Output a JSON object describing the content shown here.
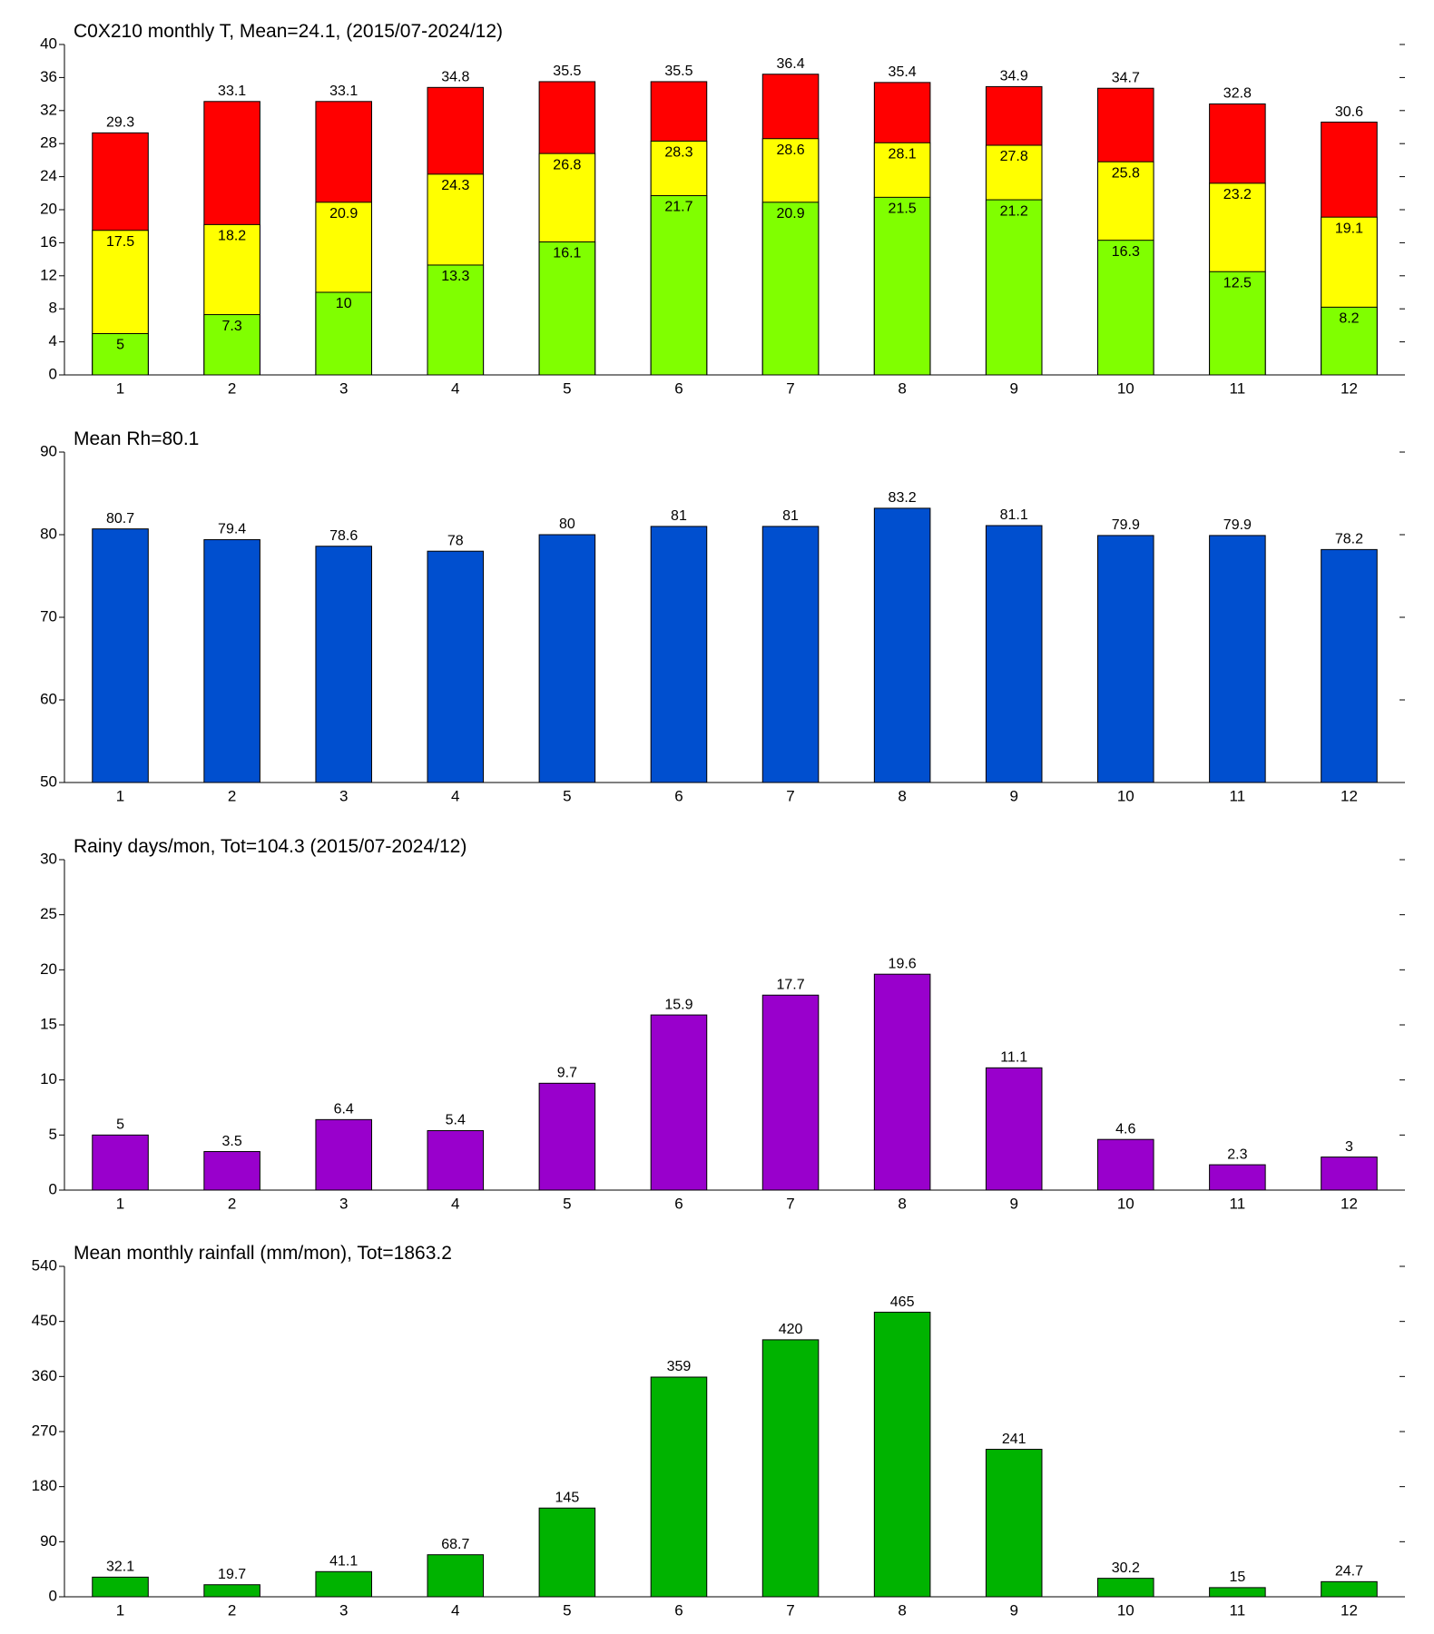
{
  "chart_data": [
    {
      "type": "bar",
      "title": "C0X210 monthly T, Mean=24.1, (2015/07-2024/12)",
      "categories": [
        "1",
        "2",
        "3",
        "4",
        "5",
        "6",
        "7",
        "8",
        "9",
        "10",
        "11",
        "12"
      ],
      "series": [
        {
          "color": "#ff0000",
          "label_position": "above",
          "values": [
            29.3,
            33.1,
            33.1,
            34.8,
            35.5,
            35.5,
            36.4,
            35.4,
            34.9,
            34.7,
            32.8,
            30.6
          ]
        },
        {
          "color": "#ffff00",
          "label_position": "inside",
          "values": [
            17.5,
            18.2,
            20.9,
            24.3,
            26.8,
            28.3,
            28.6,
            28.1,
            27.8,
            25.8,
            23.2,
            19.1
          ]
        },
        {
          "color": "#80ff00",
          "label_position": "inside",
          "values": [
            5,
            7.3,
            10,
            13.3,
            16.1,
            21.7,
            20.9,
            21.5,
            21.2,
            16.3,
            12.5,
            8.2
          ]
        }
      ],
      "ylim": [
        0,
        40
      ],
      "yticks": [
        0,
        4,
        8,
        12,
        16,
        20,
        24,
        28,
        32,
        36,
        40
      ]
    },
    {
      "type": "bar",
      "title": "Mean Rh=80.1",
      "categories": [
        "1",
        "2",
        "3",
        "4",
        "5",
        "6",
        "7",
        "8",
        "9",
        "10",
        "11",
        "12"
      ],
      "series": [
        {
          "color": "#004fcf",
          "label_position": "above",
          "values": [
            80.7,
            79.4,
            78.6,
            78,
            80,
            81,
            81,
            83.2,
            81.1,
            79.9,
            79.9,
            78.2
          ]
        }
      ],
      "ylim": [
        50,
        90
      ],
      "yticks": [
        50,
        60,
        70,
        80,
        90
      ]
    },
    {
      "type": "bar",
      "title": "Rainy days/mon, Tot=104.3 (2015/07-2024/12)",
      "categories": [
        "1",
        "2",
        "3",
        "4",
        "5",
        "6",
        "7",
        "8",
        "9",
        "10",
        "11",
        "12"
      ],
      "series": [
        {
          "color": "#9900cc",
          "label_position": "above",
          "values": [
            5,
            3.5,
            6.4,
            5.4,
            9.7,
            15.9,
            17.7,
            19.6,
            11.1,
            4.6,
            2.3,
            3
          ]
        }
      ],
      "ylim": [
        0,
        30
      ],
      "yticks": [
        0,
        5,
        10,
        15,
        20,
        25,
        30
      ]
    },
    {
      "type": "bar",
      "title": "Mean monthly rainfall (mm/mon), Tot=1863.2",
      "categories": [
        "1",
        "2",
        "3",
        "4",
        "5",
        "6",
        "7",
        "8",
        "9",
        "10",
        "11",
        "12"
      ],
      "series": [
        {
          "color": "#00b300",
          "label_position": "above",
          "values": [
            32.1,
            19.7,
            41.1,
            68.7,
            145,
            359,
            420,
            465,
            241,
            30.2,
            15,
            24.7
          ]
        }
      ],
      "ylim": [
        0,
        540
      ],
      "yticks": [
        0,
        90,
        180,
        270,
        360,
        450,
        540
      ]
    }
  ]
}
